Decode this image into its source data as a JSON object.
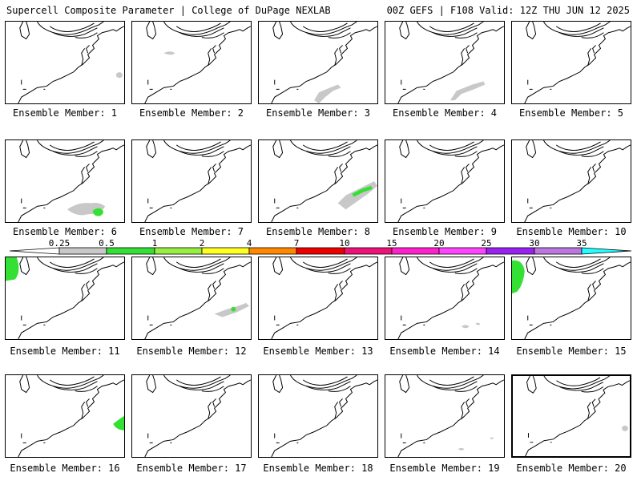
{
  "header": {
    "left": "Supercell Composite Parameter | College of DuPage NEXLAB",
    "right": "00Z GEFS | F108 Valid: 12Z THU JUN 12 2025"
  },
  "colors": {
    "gray": "#c8c8c8",
    "green": "#33e033",
    "lightgreen": "#99ee44",
    "yellow": "#ffff22",
    "orange": "#ff8800",
    "red": "#ee0000",
    "crimson": "#ee1177",
    "magenta": "#ff22cc",
    "pinkmagenta": "#ff44ff",
    "purple": "#9922ee",
    "lilac": "#bb77dd",
    "cyan": "#22ffff"
  },
  "legend": {
    "ticks": [
      "0.25",
      "0.5",
      "1",
      "2",
      "4",
      "7",
      "10",
      "15",
      "20",
      "25",
      "30",
      "35"
    ],
    "bin_colors": [
      "#c8c8c8",
      "#33e033",
      "#99ee44",
      "#ffff22",
      "#ff8800",
      "#ee0000",
      "#ee1177",
      "#ff22cc",
      "#ff44ff",
      "#9922ee",
      "#bb77dd"
    ],
    "cap_color": "#22ffff"
  },
  "members": [
    {
      "label": "Ensemble Member: 1",
      "features": [
        "gray-se-small"
      ]
    },
    {
      "label": "Ensemble Member: 2",
      "features": [
        "gray-center-small"
      ]
    },
    {
      "label": "Ensemble Member: 3",
      "features": [
        "gray-s-tail"
      ]
    },
    {
      "label": "Ensemble Member: 4",
      "features": [
        "gray-s-band"
      ]
    },
    {
      "label": "Ensemble Member: 5",
      "features": []
    },
    {
      "label": "Ensemble Member: 6",
      "features": [
        "gray-s-blob",
        "green-s"
      ]
    },
    {
      "label": "Ensemble Member: 7",
      "features": []
    },
    {
      "label": "Ensemble Member: 8",
      "features": [
        "gray-s-large",
        "green-s-streak"
      ]
    },
    {
      "label": "Ensemble Member: 9",
      "features": []
    },
    {
      "label": "Ensemble Member: 10",
      "features": []
    },
    {
      "label": "Ensemble Member: 11",
      "features": [
        "green-w-edge"
      ]
    },
    {
      "label": "Ensemble Member: 12",
      "features": [
        "gray-s-band2",
        "green-dot"
      ]
    },
    {
      "label": "Ensemble Member: 13",
      "features": []
    },
    {
      "label": "Ensemble Member: 14",
      "features": [
        "gray-s-dots"
      ]
    },
    {
      "label": "Ensemble Member: 15",
      "features": [
        "green-w-large"
      ]
    },
    {
      "label": "Ensemble Member: 16",
      "features": [
        "green-e-edge"
      ]
    },
    {
      "label": "Ensemble Member: 17",
      "features": []
    },
    {
      "label": "Ensemble Member: 18",
      "features": []
    },
    {
      "label": "Ensemble Member: 19",
      "features": [
        "gray-s-dots2"
      ]
    },
    {
      "label": "Ensemble Member: 20",
      "features": [
        "gray-se-small"
      ]
    }
  ]
}
